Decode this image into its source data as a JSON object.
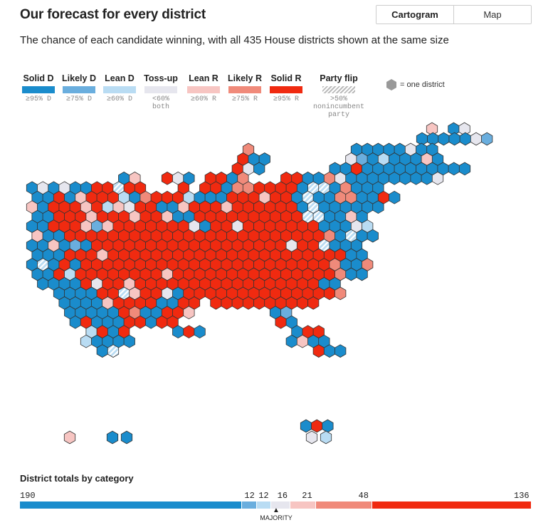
{
  "header": {
    "title": "Our forecast for every district",
    "subtitle": "The chance of each candidate winning, with all 435 House districts shown at the same size"
  },
  "view_toggle": {
    "options": [
      "Cartogram",
      "Map"
    ],
    "selected": "Cartogram"
  },
  "legend": {
    "items": [
      {
        "label": "Solid D",
        "sub": "≥95% D",
        "color": "#1a8ccc"
      },
      {
        "label": "Likely D",
        "sub": "≥75% D",
        "color": "#6aaede"
      },
      {
        "label": "Lean D",
        "sub": "≥60% D",
        "color": "#b9dcf3"
      },
      {
        "label": "Toss-up",
        "sub": "<60% both",
        "color": "#e6e6ee"
      },
      {
        "label": "Lean R",
        "sub": "≥60% R",
        "color": "#f7c5c2"
      },
      {
        "label": "Likely R",
        "sub": "≥75% R",
        "color": "#f08a7a"
      },
      {
        "label": "Solid R",
        "sub": "≥95% R",
        "color": "#f02a10"
      },
      {
        "label": "Party flip",
        "sub": ">50% nonincumbent party",
        "color": "hatch"
      }
    ],
    "one_district": "= one district"
  },
  "totals": {
    "title": "District totals by category",
    "counts": [
      190,
      12,
      12,
      16,
      21,
      48,
      136
    ],
    "majority_label": "MAJORITY",
    "colors": [
      "#1a8ccc",
      "#6aaede",
      "#b9dcf3",
      "#e6e6ee",
      "#f7c5c2",
      "#f08a7a",
      "#f02a10"
    ]
  }
}
